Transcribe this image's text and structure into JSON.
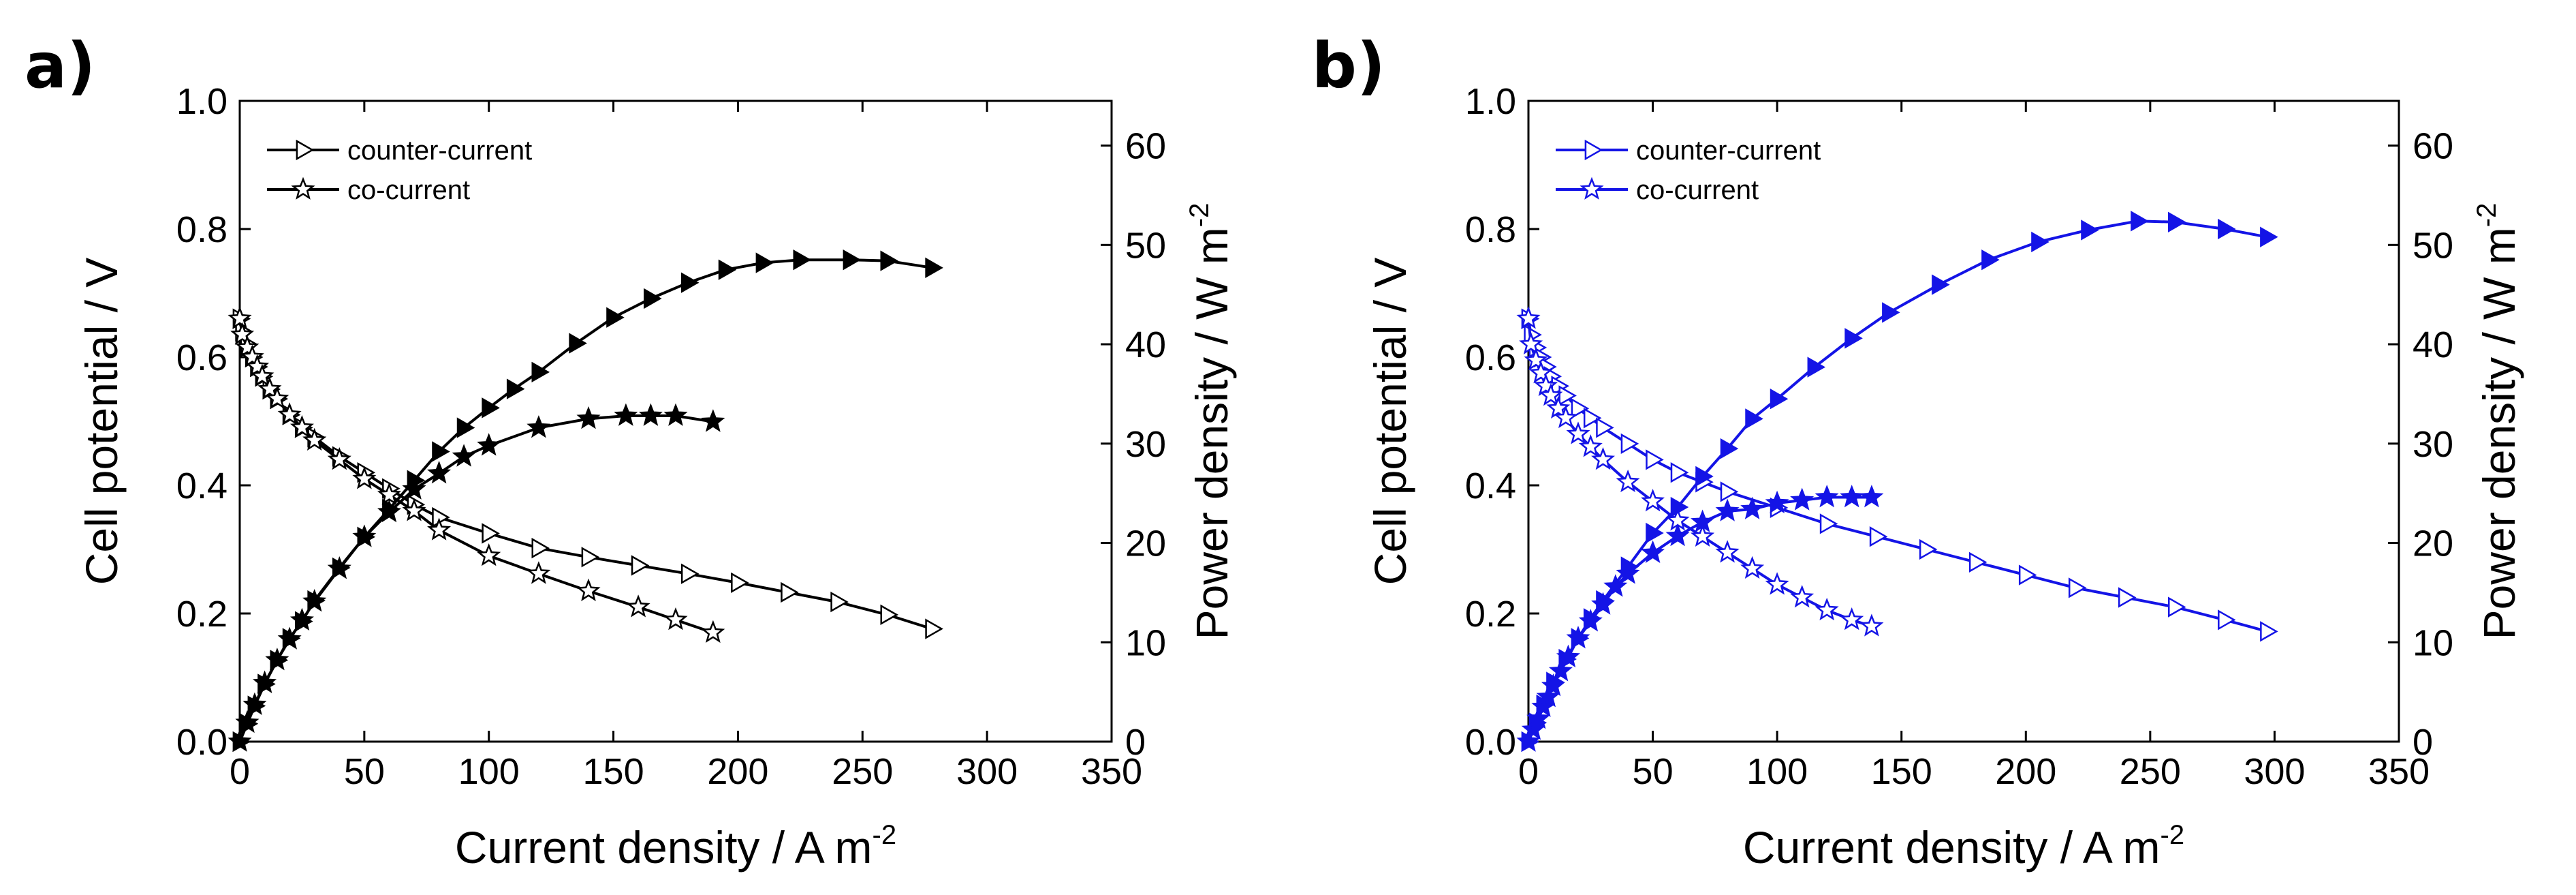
{
  "figure_labels": [
    "a)",
    "b)"
  ],
  "chart_data": [
    {
      "type": "line",
      "panel": "a)",
      "color": "#000000",
      "xlabel": "Current density / A m",
      "xlabel_sup": "-2",
      "ylabel_left": "Cell potential / V",
      "ylabel_right": "Power density / W m",
      "ylabel_right_sup": "-2",
      "xlim": [
        0,
        350
      ],
      "ylim_left": [
        0,
        1.0
      ],
      "ylim_right": [
        0,
        64.5
      ],
      "xticks": [
        0,
        50,
        100,
        150,
        200,
        250,
        300,
        350
      ],
      "yticks_left": [
        "0.0",
        "0.2",
        "0.4",
        "0.6",
        "0.8",
        "1.0"
      ],
      "yticks_right": [
        0,
        10,
        20,
        30,
        40,
        50,
        60
      ],
      "grid": false,
      "legend": {
        "position": "top-left",
        "entries": [
          "counter-current",
          "co-current"
        ]
      },
      "series": [
        {
          "name": "counter-current",
          "quantity": "cell potential",
          "axis": "left",
          "marker": "triangle-open",
          "x": [
            0,
            1,
            3,
            5,
            7,
            9,
            12,
            15,
            20,
            25,
            30,
            40,
            50,
            60,
            70,
            80,
            100,
            120,
            140,
            160,
            180,
            200,
            220,
            240,
            260,
            278
          ],
          "y": [
            0.66,
            0.64,
            0.62,
            0.6,
            0.585,
            0.57,
            0.55,
            0.535,
            0.51,
            0.49,
            0.475,
            0.445,
            0.42,
            0.395,
            0.37,
            0.35,
            0.325,
            0.302,
            0.288,
            0.275,
            0.262,
            0.248,
            0.233,
            0.218,
            0.198,
            0.176
          ]
        },
        {
          "name": "co-current",
          "quantity": "cell potential",
          "axis": "left",
          "marker": "star-open",
          "x": [
            0,
            1,
            3,
            5,
            7,
            9,
            12,
            15,
            20,
            25,
            30,
            40,
            50,
            60,
            70,
            80,
            100,
            120,
            140,
            160,
            175,
            190
          ],
          "y": [
            0.66,
            0.635,
            0.615,
            0.6,
            0.585,
            0.57,
            0.55,
            0.535,
            0.51,
            0.49,
            0.47,
            0.44,
            0.41,
            0.385,
            0.36,
            0.33,
            0.29,
            0.262,
            0.235,
            0.21,
            0.19,
            0.17
          ]
        },
        {
          "name": "counter-current",
          "quantity": "power density",
          "axis": "right",
          "marker": "triangle-filled",
          "x": [
            0,
            3,
            6,
            10,
            15,
            20,
            25,
            30,
            40,
            50,
            60,
            70,
            80,
            90,
            100,
            110,
            120,
            135,
            150,
            165,
            180,
            195,
            210,
            225,
            245,
            260,
            278
          ],
          "y": [
            0,
            1.8,
            3.6,
            5.8,
            8.2,
            10.4,
            12.1,
            14.2,
            17.5,
            20.6,
            23.4,
            26.3,
            29.2,
            31.6,
            33.6,
            35.5,
            37.2,
            40.1,
            42.7,
            44.6,
            46.2,
            47.5,
            48.2,
            48.5,
            48.5,
            48.4,
            47.7
          ]
        },
        {
          "name": "co-current",
          "quantity": "power density",
          "axis": "right",
          "marker": "star-filled",
          "x": [
            0,
            3,
            6,
            10,
            15,
            20,
            25,
            30,
            40,
            50,
            60,
            70,
            80,
            90,
            100,
            120,
            140,
            155,
            165,
            175,
            190
          ],
          "y": [
            0,
            1.9,
            3.7,
            5.9,
            8.2,
            10.3,
            12.2,
            14.1,
            17.4,
            20.6,
            23.1,
            25.4,
            27.0,
            28.7,
            29.8,
            31.6,
            32.5,
            32.8,
            32.8,
            32.8,
            32.2
          ]
        }
      ]
    },
    {
      "type": "line",
      "panel": "b)",
      "color": "#1414e6",
      "xlabel": "Current density / A m",
      "xlabel_sup": "-2",
      "ylabel_left": "Cell potential / V",
      "ylabel_right": "Power density / W m",
      "ylabel_right_sup": "-2",
      "xlim": [
        0,
        350
      ],
      "ylim_left": [
        0,
        1.0
      ],
      "ylim_right": [
        0,
        64.5
      ],
      "xticks": [
        0,
        50,
        100,
        150,
        200,
        250,
        300,
        350
      ],
      "yticks_left": [
        "0.0",
        "0.2",
        "0.4",
        "0.6",
        "0.8",
        "1.0"
      ],
      "yticks_right": [
        0,
        10,
        20,
        30,
        40,
        50,
        60
      ],
      "grid": false,
      "legend": {
        "position": "top-left",
        "entries": [
          "counter-current",
          "co-current"
        ]
      },
      "series": [
        {
          "name": "counter-current",
          "quantity": "cell potential",
          "axis": "left",
          "marker": "triangle-open",
          "x": [
            0,
            1,
            3,
            5,
            7,
            9,
            12,
            15,
            20,
            25,
            30,
            40,
            50,
            60,
            70,
            80,
            100,
            120,
            140,
            160,
            180,
            200,
            220,
            240,
            260,
            280,
            297
          ],
          "y": [
            0.66,
            0.635,
            0.615,
            0.6,
            0.585,
            0.57,
            0.555,
            0.54,
            0.52,
            0.505,
            0.49,
            0.465,
            0.44,
            0.42,
            0.405,
            0.39,
            0.365,
            0.34,
            0.32,
            0.3,
            0.28,
            0.26,
            0.24,
            0.225,
            0.21,
            0.19,
            0.172
          ]
        },
        {
          "name": "co-current",
          "quantity": "cell potential",
          "axis": "left",
          "marker": "star-open",
          "x": [
            0,
            1,
            3,
            5,
            7,
            9,
            12,
            15,
            20,
            25,
            30,
            40,
            50,
            60,
            70,
            80,
            90,
            100,
            110,
            120,
            130,
            138
          ],
          "y": [
            0.66,
            0.62,
            0.595,
            0.575,
            0.555,
            0.54,
            0.52,
            0.505,
            0.48,
            0.46,
            0.44,
            0.405,
            0.375,
            0.345,
            0.32,
            0.295,
            0.27,
            0.245,
            0.225,
            0.205,
            0.19,
            0.18
          ]
        },
        {
          "name": "counter-current",
          "quantity": "power density",
          "axis": "right",
          "marker": "triangle-filled",
          "x": [
            0,
            3,
            6,
            10,
            15,
            20,
            25,
            30,
            40,
            50,
            60,
            70,
            80,
            90,
            100,
            115,
            130,
            145,
            165,
            185,
            205,
            225,
            245,
            260,
            280,
            297
          ],
          "y": [
            0,
            1.9,
            3.7,
            6.0,
            8.3,
            10.4,
            12.4,
            14.2,
            17.6,
            21.0,
            23.6,
            26.7,
            29.5,
            32.5,
            34.5,
            37.7,
            40.6,
            43.2,
            46.0,
            48.5,
            50.3,
            51.5,
            52.4,
            52.3,
            51.6,
            50.8
          ]
        },
        {
          "name": "co-current",
          "quantity": "power density",
          "axis": "right",
          "marker": "star-filled",
          "x": [
            0,
            2,
            4,
            6,
            8,
            10,
            13,
            16,
            20,
            25,
            30,
            35,
            40,
            50,
            60,
            70,
            80,
            90,
            100,
            110,
            120,
            130,
            138
          ],
          "y": [
            0,
            1.2,
            2.3,
            3.5,
            4.5,
            5.6,
            7.1,
            8.5,
            10.4,
            12.1,
            13.8,
            15.6,
            16.9,
            19.0,
            20.7,
            22.1,
            23.2,
            23.4,
            24.0,
            24.3,
            24.6,
            24.6,
            24.6
          ]
        }
      ]
    }
  ]
}
